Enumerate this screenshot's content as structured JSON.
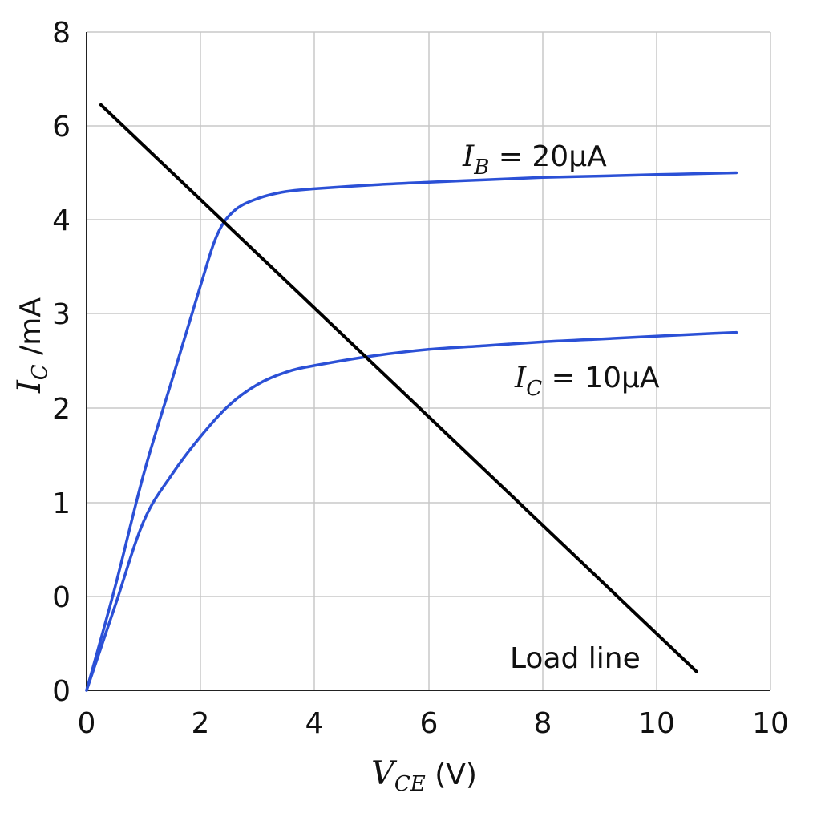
{
  "chart_data": {
    "type": "line",
    "xlabel": {
      "var": "V",
      "sub": "CE",
      "unit": " (V)"
    },
    "ylabel": {
      "var": "I",
      "sub": "C",
      "unit": " /mA"
    },
    "x_ticks": [
      "0",
      "2",
      "4",
      "6",
      "8",
      "10",
      "10"
    ],
    "y_ticks": [
      "0",
      "0",
      "1",
      "2",
      "3",
      "4",
      "6",
      "8"
    ],
    "xlim": [
      0,
      12
    ],
    "grid": true,
    "series": [
      {
        "name": "I_B = 20μA",
        "label": {
          "var": "I",
          "sub": "B",
          "rest": " = 20μA"
        },
        "color": "#2b50d6",
        "x": [
          0,
          0.5,
          1.0,
          1.5,
          2.0,
          2.3,
          2.6,
          3.0,
          3.5,
          4.0,
          5.0,
          6.0,
          7.0,
          8.0,
          9.0,
          10.0,
          11.0,
          11.4
        ],
        "y": [
          0,
          0.55,
          1.3,
          2.3,
          3.3,
          3.85,
          4.2,
          4.45,
          4.6,
          4.66,
          4.74,
          4.8,
          4.85,
          4.9,
          4.93,
          4.96,
          4.99,
          5.0
        ]
      },
      {
        "name": "I_C = 10μA",
        "label": {
          "var": "I",
          "sub": "C",
          "rest": " = 10μA"
        },
        "color": "#2b50d6",
        "x": [
          0,
          0.5,
          1.0,
          1.5,
          2.0,
          2.5,
          3.0,
          3.5,
          4.0,
          5.0,
          6.0,
          7.0,
          8.0,
          9.0,
          10.0,
          11.0,
          11.4
        ],
        "y": [
          0,
          0.45,
          0.9,
          1.3,
          1.7,
          2.03,
          2.25,
          2.38,
          2.45,
          2.55,
          2.62,
          2.66,
          2.7,
          2.73,
          2.76,
          2.79,
          2.8
        ]
      },
      {
        "name": "Load line",
        "color": "#000000",
        "x": [
          0.25,
          10.7
        ],
        "y": [
          6.45,
          0.1
        ]
      }
    ],
    "load_line_label": "Load line"
  }
}
